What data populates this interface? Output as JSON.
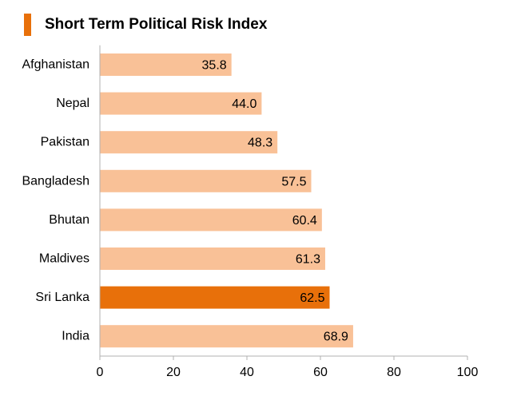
{
  "chart_data": {
    "type": "bar",
    "orientation": "horizontal",
    "title": "Short Term Political Risk Index",
    "categories": [
      "Afghanistan",
      "Nepal",
      "Pakistan",
      "Bangladesh",
      "Bhutan",
      "Maldives",
      "Sri Lanka",
      "India"
    ],
    "values": [
      35.8,
      44.0,
      48.3,
      57.5,
      60.4,
      61.3,
      62.5,
      68.9
    ],
    "value_labels": [
      "35.8",
      "44.0",
      "48.3",
      "57.5",
      "60.4",
      "61.3",
      "62.5",
      "68.9"
    ],
    "highlight_category": "Sri Lanka",
    "xlim": [
      0,
      100
    ],
    "xticks": [
      0,
      20,
      40,
      60,
      80,
      100
    ],
    "xlabel": "",
    "ylabel": "",
    "grid": false,
    "colors": {
      "bar": "#f9c197",
      "highlight": "#e8700a",
      "accent": "#e8700a",
      "axis": "#b0b0b0"
    }
  }
}
